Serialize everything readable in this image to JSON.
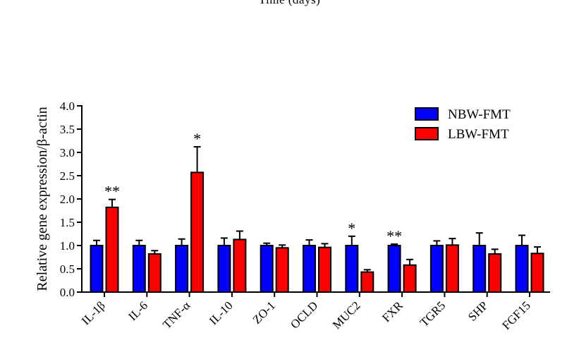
{
  "page": {
    "top_caption": "Time (days)"
  },
  "chart_data": {
    "type": "bar",
    "title": "",
    "xlabel": "",
    "ylabel": "Relative gene expression/β-actin",
    "ylim": [
      0,
      4.0
    ],
    "yticks": [
      "0.0",
      "0.5",
      "1.0",
      "1.5",
      "2.0",
      "2.5",
      "3.0",
      "3.5",
      "4.0"
    ],
    "grid": false,
    "legend_position": "top-right",
    "categories": [
      "IL-1β",
      "IL-6",
      "TNF-α",
      "IL-10",
      "ZO-1",
      "OCLD",
      "MUC2",
      "FXR",
      "TGR5",
      "SHP",
      "FGF15"
    ],
    "series": [
      {
        "name": "NBW-FMT",
        "color": "#0000ff",
        "values": [
          1.0,
          1.0,
          1.0,
          1.0,
          1.0,
          1.0,
          1.0,
          1.0,
          1.0,
          1.0,
          1.0
        ],
        "errors": [
          0.11,
          0.11,
          0.14,
          0.16,
          0.05,
          0.12,
          0.2,
          0.03,
          0.1,
          0.27,
          0.22
        ]
      },
      {
        "name": "LBW-FMT",
        "color": "#ff0000",
        "values": [
          1.82,
          0.82,
          2.57,
          1.13,
          0.95,
          0.96,
          0.43,
          0.58,
          1.01,
          0.82,
          0.83
        ],
        "errors": [
          0.17,
          0.07,
          0.55,
          0.18,
          0.06,
          0.08,
          0.05,
          0.12,
          0.14,
          0.1,
          0.14
        ]
      }
    ],
    "annotations": [
      {
        "category": "IL-1β",
        "series": "LBW-FMT",
        "text": "**"
      },
      {
        "category": "TNF-α",
        "series": "LBW-FMT",
        "text": "*"
      },
      {
        "category": "MUC2",
        "series": "NBW-FMT",
        "text": "*"
      },
      {
        "category": "FXR",
        "series": "NBW-FMT",
        "text": "**"
      }
    ]
  }
}
